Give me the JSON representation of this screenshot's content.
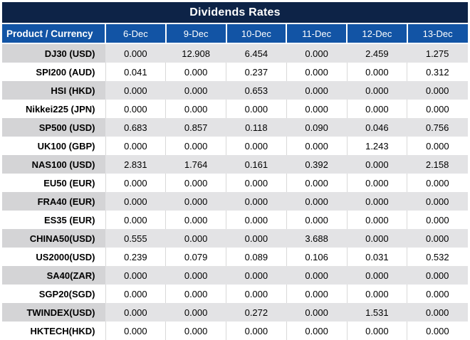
{
  "title": "Dividends Rates",
  "colors": {
    "title_bg": "#0D2347",
    "header_bg": "#1254A5",
    "stripe_value_bg": "#E3E3E5",
    "stripe_label_bg": "#D4D4D6",
    "nonzero_value_color": "#FE0000",
    "zero_value_color": "#000000"
  },
  "table": {
    "corner_header": "Product / Currency",
    "date_headers": [
      "6-Dec",
      "9-Dec",
      "10-Dec",
      "11-Dec",
      "12-Dec",
      "13-Dec"
    ],
    "rows": [
      {
        "product": "DJ30 (USD)",
        "values": [
          "0.000",
          "12.908",
          "6.454",
          "0.000",
          "2.459",
          "1.275"
        ]
      },
      {
        "product": "SPI200 (AUD)",
        "values": [
          "0.041",
          "0.000",
          "0.237",
          "0.000",
          "0.000",
          "0.312"
        ]
      },
      {
        "product": "HSI (HKD)",
        "values": [
          "0.000",
          "0.000",
          "0.653",
          "0.000",
          "0.000",
          "0.000"
        ]
      },
      {
        "product": "Nikkei225 (JPN)",
        "values": [
          "0.000",
          "0.000",
          "0.000",
          "0.000",
          "0.000",
          "0.000"
        ]
      },
      {
        "product": "SP500 (USD)",
        "values": [
          "0.683",
          "0.857",
          "0.118",
          "0.090",
          "0.046",
          "0.756"
        ]
      },
      {
        "product": "UK100 (GBP)",
        "values": [
          "0.000",
          "0.000",
          "0.000",
          "0.000",
          "1.243",
          "0.000"
        ]
      },
      {
        "product": "NAS100 (USD)",
        "values": [
          "2.831",
          "1.764",
          "0.161",
          "0.392",
          "0.000",
          "2.158"
        ]
      },
      {
        "product": "EU50 (EUR)",
        "values": [
          "0.000",
          "0.000",
          "0.000",
          "0.000",
          "0.000",
          "0.000"
        ]
      },
      {
        "product": "FRA40 (EUR)",
        "values": [
          "0.000",
          "0.000",
          "0.000",
          "0.000",
          "0.000",
          "0.000"
        ]
      },
      {
        "product": "ES35 (EUR)",
        "values": [
          "0.000",
          "0.000",
          "0.000",
          "0.000",
          "0.000",
          "0.000"
        ]
      },
      {
        "product": "CHINA50(USD)",
        "values": [
          "0.555",
          "0.000",
          "0.000",
          "3.688",
          "0.000",
          "0.000"
        ]
      },
      {
        "product": "US2000(USD)",
        "values": [
          "0.239",
          "0.079",
          "0.089",
          "0.106",
          "0.031",
          "0.532"
        ]
      },
      {
        "product": "SA40(ZAR)",
        "values": [
          "0.000",
          "0.000",
          "0.000",
          "0.000",
          "0.000",
          "0.000"
        ]
      },
      {
        "product": "SGP20(SGD)",
        "values": [
          "0.000",
          "0.000",
          "0.000",
          "0.000",
          "0.000",
          "0.000"
        ]
      },
      {
        "product": "TWINDEX(USD)",
        "values": [
          "0.000",
          "0.000",
          "0.272",
          "0.000",
          "1.531",
          "0.000"
        ]
      },
      {
        "product": "HKTECH(HKD)",
        "values": [
          "0.000",
          "0.000",
          "0.000",
          "0.000",
          "0.000",
          "0.000"
        ]
      }
    ]
  }
}
